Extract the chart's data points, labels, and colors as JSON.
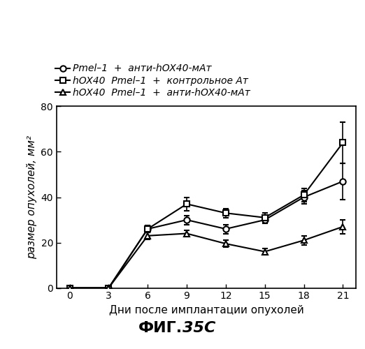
{
  "x": [
    0,
    3,
    6,
    9,
    12,
    15,
    18,
    21
  ],
  "series": [
    {
      "y": [
        0,
        0,
        26,
        30,
        26,
        30,
        40,
        47
      ],
      "yerr": [
        0.3,
        0.3,
        1.5,
        2,
        2,
        1.5,
        3,
        8
      ],
      "marker": "o",
      "markersize": 6
    },
    {
      "y": [
        0,
        0,
        26,
        37,
        33,
        31,
        41,
        64
      ],
      "yerr": [
        0.3,
        0.3,
        1.5,
        3,
        2,
        2,
        3,
        9
      ],
      "marker": "s",
      "markersize": 6
    },
    {
      "y": [
        0,
        0,
        23,
        24,
        19.5,
        16,
        21,
        27
      ],
      "yerr": [
        0.3,
        0.3,
        1.5,
        1.5,
        1.5,
        1.5,
        2,
        3
      ],
      "marker": "^",
      "markersize": 6
    }
  ],
  "legend_line1": "Pmel–1  +  анти-hOX40-мАт",
  "legend_line2": "hOX40  Pmel–1  +  контрольное Ат",
  "legend_line3": "hOX40  Pmel–1  +  анти-hOX40-мАт",
  "xlabel": "Дни после имплантации опухолей",
  "ylabel": "размер опухолей, мм²",
  "title_normal": "ФИГ.",
  "title_bold_italic": "35C",
  "ylim": [
    0,
    80
  ],
  "yticks": [
    0,
    20,
    40,
    60,
    80
  ],
  "xticks": [
    0,
    3,
    6,
    9,
    12,
    15,
    18,
    21
  ],
  "color": "#000000",
  "linewidth": 1.5,
  "background_color": "#ffffff",
  "axis_label_fontsize": 11,
  "tick_fontsize": 10,
  "legend_fontsize": 10,
  "title_fontsize": 16
}
